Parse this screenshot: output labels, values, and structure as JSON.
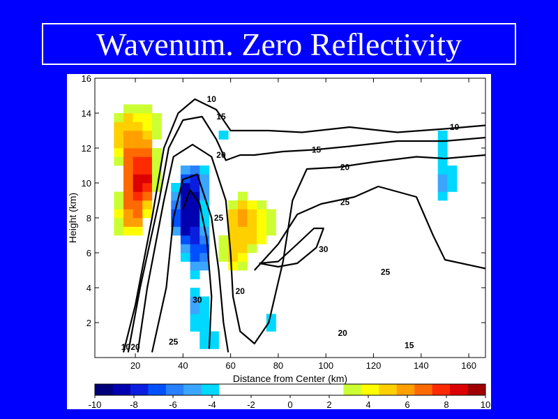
{
  "slide": {
    "title": "Wavenum. Zero Reflectivity"
  },
  "chart_data": {
    "type": "heatmap",
    "title": "",
    "xlabel": "Distance from Center (km)",
    "ylabel": "Height (km)",
    "xlim": [
      3,
      167
    ],
    "ylim": [
      0,
      16
    ],
    "xticks": [
      20,
      40,
      60,
      80,
      100,
      120,
      140,
      160
    ],
    "yticks": [
      2,
      4,
      6,
      8,
      10,
      12,
      14,
      16
    ],
    "grid": false,
    "colorbar": {
      "ticks": [
        -10,
        -8,
        -6,
        -4,
        -2,
        0,
        2,
        4,
        6,
        8,
        10
      ],
      "colors": [
        "#00007a",
        "#0000b0",
        "#0a1ee0",
        "#0050ff",
        "#2880ff",
        "#3aa6ff",
        "#00d8ff",
        "#ffffff",
        "#ffffff",
        "#ffffff",
        "#ffffff",
        "#ffffff",
        "#ffffff",
        "#ffffff",
        "#ccff33",
        "#ffff00",
        "#ffd000",
        "#ffa000",
        "#ff6a00",
        "#ff2a00",
        "#dd0000",
        "#a00000"
      ]
    },
    "shading": [
      {
        "x": 21,
        "y": 12,
        "value": 7
      },
      {
        "x": 22,
        "y": 10,
        "value": 9
      },
      {
        "x": 18,
        "y": 8,
        "value": 6
      },
      {
        "x": 26,
        "y": 14,
        "value": 3
      },
      {
        "x": 16,
        "y": 13,
        "value": 5
      },
      {
        "x": 44,
        "y": 10,
        "value": -8
      },
      {
        "x": 41,
        "y": 8,
        "value": -9
      },
      {
        "x": 47,
        "y": 6,
        "value": -7
      },
      {
        "x": 45,
        "y": 3,
        "value": -5
      },
      {
        "x": 51,
        "y": 1,
        "value": -4
      },
      {
        "x": 58,
        "y": 13,
        "value": -4
      },
      {
        "x": 70,
        "y": 14,
        "value": -3
      },
      {
        "x": 65,
        "y": 8,
        "value": 6
      },
      {
        "x": 61,
        "y": 6,
        "value": 5
      },
      {
        "x": 74,
        "y": 7.5,
        "value": 4
      },
      {
        "x": 64,
        "y": 15.2,
        "value": 3
      },
      {
        "x": 77,
        "y": 2,
        "value": -4
      },
      {
        "x": 150,
        "y": 10,
        "value": -5
      },
      {
        "x": 150,
        "y": 12.5,
        "value": -4
      },
      {
        "x": 143,
        "y": 8,
        "value": -2
      },
      {
        "x": 158,
        "y": 7.5,
        "value": -2
      },
      {
        "x": 124,
        "y": 11,
        "value": -2
      },
      {
        "x": 6,
        "y": 1,
        "value": -3
      },
      {
        "x": 123,
        "y": 2,
        "value": 3
      },
      {
        "x": 110,
        "y": 7,
        "value": 2
      },
      {
        "x": 92,
        "y": 14,
        "value": 2
      },
      {
        "x": 119,
        "y": 14,
        "value": 2
      },
      {
        "x": 162,
        "y": 13,
        "value": 2
      },
      {
        "x": 10,
        "y": 4,
        "value": 2
      },
      {
        "x": 33,
        "y": 3,
        "value": 2
      }
    ],
    "contours": [
      {
        "label": "10",
        "points": [
          [
            15,
            0.3
          ],
          [
            20,
            3
          ],
          [
            27,
            8
          ],
          [
            32,
            12
          ],
          [
            38,
            14
          ],
          [
            45,
            14.8
          ],
          [
            54,
            14.2
          ],
          [
            60,
            13
          ],
          [
            68,
            13
          ],
          [
            76,
            13
          ],
          [
            90,
            12.9
          ],
          [
            110,
            13.2
          ],
          [
            130,
            12.9
          ],
          [
            150,
            13.1
          ],
          [
            167,
            13.3
          ]
        ],
        "labels": [
          [
            52,
            14.8
          ],
          [
            154,
            13.2
          ],
          [
            16,
            0.6
          ]
        ]
      },
      {
        "label": "15",
        "points": [
          [
            17,
            0.3
          ],
          [
            22,
            4
          ],
          [
            30,
            9
          ],
          [
            34,
            12
          ],
          [
            40,
            13.6
          ],
          [
            48,
            13.8
          ],
          [
            54,
            12.5
          ],
          [
            58,
            11.3
          ],
          [
            64,
            11.6
          ],
          [
            70,
            11.6
          ],
          [
            82,
            11.8
          ],
          [
            95,
            11.9
          ],
          [
            110,
            12.1
          ],
          [
            130,
            12.4
          ],
          [
            150,
            12.4
          ],
          [
            167,
            12.6
          ]
        ],
        "labels": [
          [
            56,
            13.8
          ],
          [
            96,
            11.9
          ],
          [
            135,
            0.7
          ]
        ]
      },
      {
        "label": "20",
        "points": [
          [
            21,
            0.3
          ],
          [
            25,
            4
          ],
          [
            32,
            9
          ],
          [
            36,
            11.5
          ],
          [
            44,
            12.2
          ],
          [
            52,
            11.5
          ],
          [
            58,
            9
          ],
          [
            60,
            6
          ],
          [
            61,
            3.5
          ],
          [
            64,
            1.5
          ],
          [
            70,
            0.8
          ],
          [
            76,
            2
          ],
          [
            82,
            5.5
          ],
          [
            86,
            9
          ],
          [
            92,
            10.8
          ],
          [
            105,
            10.9
          ],
          [
            120,
            11.2
          ],
          [
            138,
            11.5
          ],
          [
            150,
            11.4
          ],
          [
            167,
            11.6
          ]
        ],
        "labels": [
          [
            56,
            11.6
          ],
          [
            108,
            10.9
          ],
          [
            64,
            3.8
          ],
          [
            107,
            1.4
          ],
          [
            20,
            0.6
          ]
        ]
      },
      {
        "label": "25",
        "points": [
          [
            27,
            0.3
          ],
          [
            33,
            4
          ],
          [
            36,
            8
          ],
          [
            40,
            10.2
          ],
          [
            46,
            10.5
          ],
          [
            52,
            8
          ],
          [
            55,
            5
          ],
          [
            57,
            2
          ],
          [
            59,
            0.3
          ]
        ],
        "labels": [
          [
            55,
            8.0
          ],
          [
            36,
            0.9
          ]
        ]
      },
      {
        "label": "25",
        "points": [
          [
            70,
            5
          ],
          [
            80,
            6.5
          ],
          [
            88,
            8.2
          ],
          [
            98,
            8.8
          ],
          [
            112,
            9.2
          ],
          [
            122,
            9.8
          ],
          [
            130,
            9.5
          ],
          [
            138,
            9.2
          ],
          [
            145,
            7
          ],
          [
            150,
            5.6
          ],
          [
            167,
            5.1
          ]
        ],
        "labels": [
          [
            125,
            4.9
          ],
          [
            108,
            8.9
          ]
        ]
      },
      {
        "label": "30",
        "points": [
          [
            40,
            8.5
          ],
          [
            43,
            9.6
          ],
          [
            47,
            8.8
          ],
          [
            50,
            6.8
          ],
          [
            52,
            3.5
          ],
          [
            51,
            0.5
          ]
        ],
        "labels": [
          [
            46,
            3.3
          ]
        ]
      },
      {
        "label": "30",
        "points": [
          [
            72,
            5.4
          ],
          [
            80,
            5.5
          ],
          [
            88,
            6.5
          ],
          [
            95,
            7.4
          ],
          [
            99,
            7.4
          ],
          [
            96,
            6.3
          ],
          [
            88,
            5.4
          ],
          [
            80,
            5.2
          ],
          [
            72,
            5.4
          ]
        ],
        "labels": [
          [
            99,
            6.2
          ]
        ]
      }
    ]
  }
}
